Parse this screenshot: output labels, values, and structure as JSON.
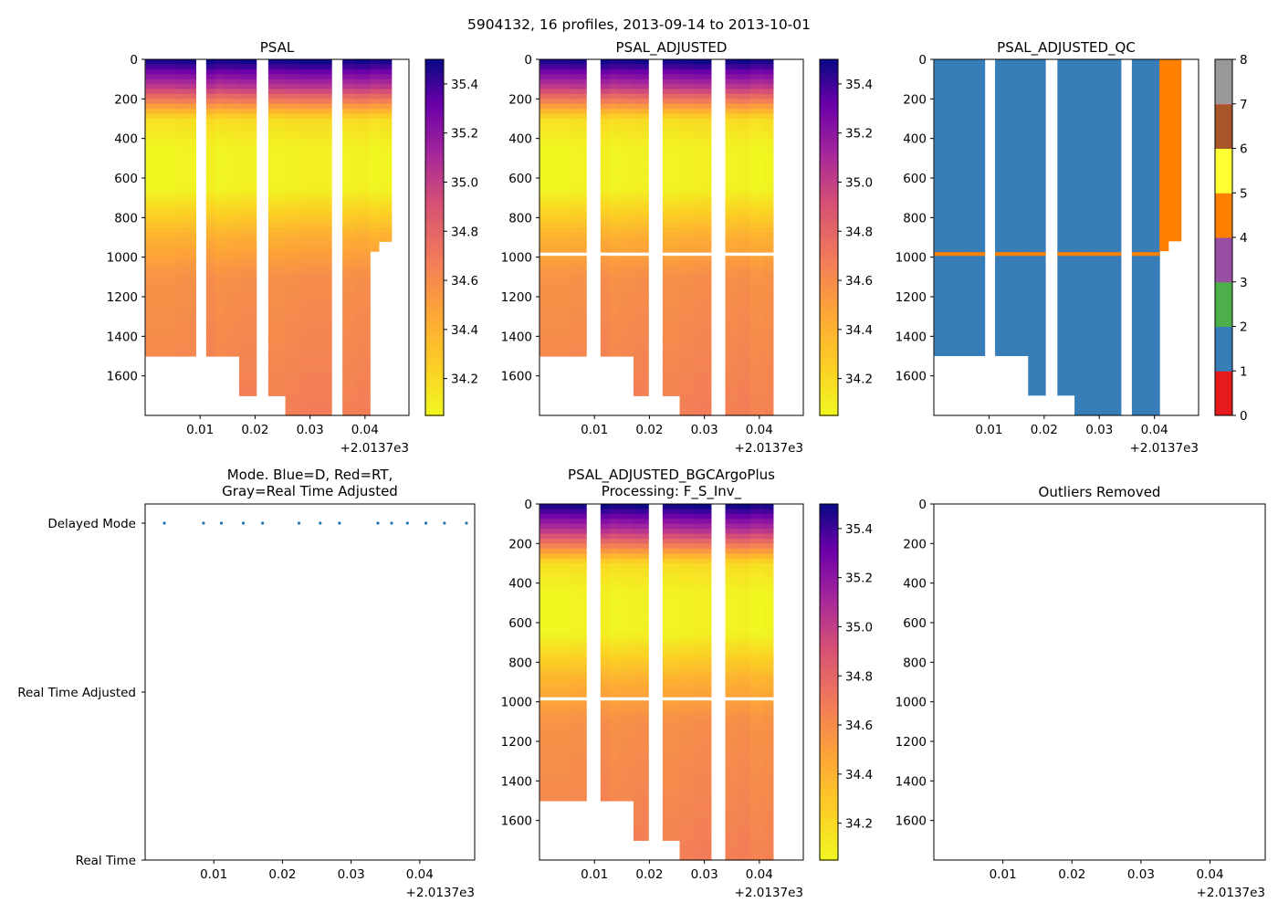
{
  "suptitle": "5904132, 16 profiles, 2013-09-14 to 2013-10-01",
  "chart_data": [
    {
      "type": "heatmap",
      "title": "PSAL",
      "xlim": [
        0.0,
        0.048
      ],
      "xticks": [
        "0.01",
        "0.02",
        "0.03",
        "0.04"
      ],
      "x_offset_label": "+2.0137e3",
      "ylim": [
        1800,
        0
      ],
      "yticks": [
        "0",
        "200",
        "400",
        "600",
        "800",
        "1000",
        "1200",
        "1400",
        "1600"
      ],
      "profiles_x": [
        0.0001,
        0.0057,
        0.0092,
        0.0111,
        0.0128,
        0.0143,
        0.0171,
        0.0202,
        0.0224,
        0.0255,
        0.0283,
        0.0339,
        0.0359,
        0.0382,
        0.0409,
        0.0425,
        0.0448
      ],
      "profile_max_depth": [
        1500,
        1500,
        null,
        1500,
        1500,
        1500,
        1700,
        null,
        1700,
        1800,
        1800,
        null,
        1800,
        1800,
        970,
        920
      ],
      "colorbar": {
        "cmap": "plasma_r",
        "vmin": 34.05,
        "vmax": 35.5,
        "ticks": [
          "34.2",
          "34.4",
          "34.6",
          "34.8",
          "35.0",
          "35.2",
          "35.4"
        ]
      }
    },
    {
      "type": "heatmap",
      "title": "PSAL_ADJUSTED",
      "xlim": [
        0.0,
        0.048
      ],
      "xticks": [
        "0.01",
        "0.02",
        "0.03",
        "0.04"
      ],
      "x_offset_label": "+2.0137e3",
      "ylim": [
        1800,
        0
      ],
      "yticks": [
        "0",
        "200",
        "400",
        "600",
        "800",
        "1000",
        "1200",
        "1400",
        "1600"
      ],
      "profiles_x": [
        0.0001,
        0.0057,
        0.0085,
        0.0111,
        0.0128,
        0.0143,
        0.0171,
        0.0198,
        0.0224,
        0.0255,
        0.0283,
        0.0312,
        0.0338,
        0.0362,
        0.0384,
        0.0409,
        0.0425
      ],
      "profile_max_depth": [
        1500,
        1500,
        null,
        1500,
        1500,
        1500,
        1700,
        null,
        1700,
        1800,
        1800,
        null,
        1800,
        1800,
        1800,
        1800
      ],
      "gap_depth": 985,
      "colorbar": {
        "cmap": "plasma_r",
        "vmin": 34.05,
        "vmax": 35.5,
        "ticks": [
          "34.2",
          "34.4",
          "34.6",
          "34.8",
          "35.0",
          "35.2",
          "35.4"
        ]
      }
    },
    {
      "type": "heatmap",
      "title": "PSAL_ADJUSTED_QC",
      "xlim": [
        0.0,
        0.048
      ],
      "xticks": [
        "0.01",
        "0.02",
        "0.03",
        "0.04"
      ],
      "x_offset_label": "+2.0137e3",
      "ylim": [
        1800,
        0
      ],
      "yticks": [
        "0",
        "200",
        "400",
        "600",
        "800",
        "1000",
        "1200",
        "1400",
        "1600"
      ],
      "flag_1_color": "#377eb8",
      "flag_4_color": "#ff7f00",
      "colorbar": {
        "vmin": 0,
        "vmax": 8,
        "ticks": [
          "0",
          "1",
          "2",
          "3",
          "4",
          "5",
          "6",
          "7",
          "8"
        ],
        "colors": [
          "#e41a1c",
          "#377eb8",
          "#4daf4a",
          "#984ea3",
          "#ff7f00",
          "#ffff33",
          "#a65628",
          "#f781bf",
          "#999999"
        ]
      }
    },
    {
      "type": "scatter",
      "title": "Mode. Blue=D, Red=RT,",
      "title_line2": "Gray=Real Time Adjusted",
      "xlim": [
        0.0,
        0.048
      ],
      "xticks": [
        "0.01",
        "0.02",
        "0.03",
        "0.04"
      ],
      "x_offset_label": "+2.0137e3",
      "ycategories": [
        "Delayed Mode",
        "Real Time Adjusted",
        "Real Time"
      ],
      "points_x": [
        0.0028,
        0.0085,
        0.0111,
        0.0143,
        0.0171,
        0.0224,
        0.0255,
        0.0283,
        0.0339,
        0.0359,
        0.0382,
        0.0409,
        0.0436,
        0.0468
      ],
      "points_y": "Delayed Mode",
      "point_color": "#1f77b4"
    },
    {
      "type": "heatmap",
      "title": "PSAL_ADJUSTED_BGCArgoPlus",
      "title_line2": "Processing: F_S_Inv_",
      "xlim": [
        0.0,
        0.048
      ],
      "xticks": [
        "0.01",
        "0.02",
        "0.03",
        "0.04"
      ],
      "x_offset_label": "+2.0137e3",
      "ylim": [
        1800,
        0
      ],
      "yticks": [
        "0",
        "200",
        "400",
        "600",
        "800",
        "1000",
        "1200",
        "1400",
        "1600"
      ],
      "colorbar": {
        "cmap": "plasma_r",
        "vmin": 34.05,
        "vmax": 35.5,
        "ticks": [
          "34.2",
          "34.4",
          "34.6",
          "34.8",
          "35.0",
          "35.2",
          "35.4"
        ]
      }
    },
    {
      "type": "scatter",
      "title": "Outliers Removed",
      "xlim": [
        0.0,
        0.048
      ],
      "xticks": [
        "0.01",
        "0.02",
        "0.03",
        "0.04"
      ],
      "x_offset_label": "+2.0137e3",
      "ylim": [
        1800,
        0
      ],
      "yticks": [
        "0",
        "200",
        "400",
        "600",
        "800",
        "1000",
        "1200",
        "1400",
        "1600"
      ],
      "points": []
    }
  ]
}
